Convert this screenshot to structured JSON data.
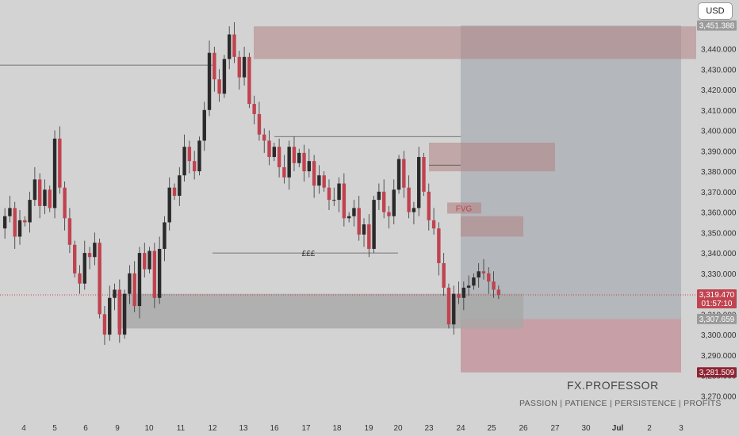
{
  "currency_button": "USD",
  "watermark": {
    "title": "FX.PROFESSOR",
    "tagline": "PASSION  |  PATIENCE  |  PERSISTENCE  |  PROFITS"
  },
  "colors": {
    "background": "#d3d3d3",
    "bull": "#2a2a2a",
    "bear": "#c0434f",
    "wick": "#333333",
    "supply_zone": "#b38383",
    "demand_zone": "#a8a8a8",
    "projection": "#9aa0a8",
    "target_zone": "#bf7d88",
    "price_line": "#c0434f"
  },
  "chart_data": {
    "type": "candlestick",
    "title": "",
    "ylim": [
      3262,
      3460
    ],
    "y_axis_ticks": [
      3270,
      3280,
      3290,
      3300,
      3310,
      3320,
      3330,
      3340,
      3350,
      3360,
      3370,
      3380,
      3390,
      3400,
      3410,
      3420,
      3430,
      3440
    ],
    "x_axis_labels": [
      "4",
      "5",
      "6",
      "9",
      "10",
      "11",
      "12",
      "13",
      "16",
      "17",
      "18",
      "19",
      "20",
      "23",
      "24",
      "25",
      "26",
      "27",
      "30",
      "Jul",
      "2",
      "3"
    ],
    "axis_badges": [
      {
        "value": "3,451.388",
        "style": "grey"
      },
      {
        "value": "3,319.470",
        "subtext": "01:57:10",
        "style": "red"
      },
      {
        "value": "3,307.659",
        "style": "grey"
      },
      {
        "value": "3,281.509",
        "style": "darkred"
      }
    ],
    "annotations": [
      {
        "text": "FVG",
        "level": 3362
      },
      {
        "text": "£££",
        "level": 3340
      }
    ],
    "zones": [
      {
        "kind": "supply",
        "from_label": "13",
        "to": "right-edge",
        "low": 3435,
        "high": 3451
      },
      {
        "kind": "supply",
        "from_label": "23",
        "to_label": "27",
        "low": 3380,
        "high": 3394
      },
      {
        "kind": "supply",
        "from_label": "24",
        "to_label": "26",
        "low": 3348,
        "high": 3358
      },
      {
        "kind": "demand",
        "from_label": "9",
        "to_label": "26",
        "low": 3303,
        "high": 3320
      },
      {
        "kind": "projection",
        "from_label": "24",
        "to_label": "3",
        "low": 3307.659,
        "high": 3451.388
      },
      {
        "kind": "target",
        "from_label": "24",
        "to_label": "3",
        "low": 3281.509,
        "high": 3307.659
      }
    ],
    "horizontal_lines": [
      {
        "level": 3432,
        "from": "left-edge",
        "to_label": "12"
      },
      {
        "level": 3397,
        "from_label": "16",
        "to_label": "24"
      },
      {
        "level": 3383,
        "from_label": "23",
        "to_label": "24"
      },
      {
        "level": 3340,
        "from_label": "12",
        "to_label": "20",
        "label": "£££"
      },
      {
        "level": 3319.47,
        "from": "left-edge",
        "to": "right-edge",
        "style": "dotted"
      }
    ],
    "current_price": 3319.47,
    "series": [
      {
        "label": "",
        "path": [
          3352,
          3358,
          3362,
          3348,
          3356,
          3355,
          3366,
          3376,
          3363,
          3371,
          3362,
          3396,
          3372,
          3357,
          3344,
          3330,
          3325,
          3340,
          3338,
          3345,
          3310,
          3300,
          3318,
          3322,
          3300,
          3320,
          3330,
          3314,
          3340,
          3332,
          3341,
          3318,
          3342,
          3355,
          3372,
          3368,
          3378,
          3392,
          3385,
          3380,
          3395,
          3410,
          3438,
          3425,
          3418,
          3435,
          3447,
          3436,
          3426,
          3436,
          3413,
          3408,
          3398,
          3395,
          3387,
          3392,
          3382,
          3377,
          3392,
          3384,
          3389,
          3380,
          3385,
          3373,
          3378,
          3372,
          3366,
          3366,
          3374,
          3357,
          3358,
          3362,
          3349,
          3354,
          3342,
          3366,
          3370,
          3360,
          3358,
          3371,
          3386,
          3372,
          3360,
          3362,
          3387,
          3370,
          3356,
          3352,
          3335,
          3323,
          3305,
          3320,
          3318,
          3323,
          3324,
          3328,
          3331,
          3330,
          3326,
          3322,
          3319.47
        ]
      }
    ]
  }
}
